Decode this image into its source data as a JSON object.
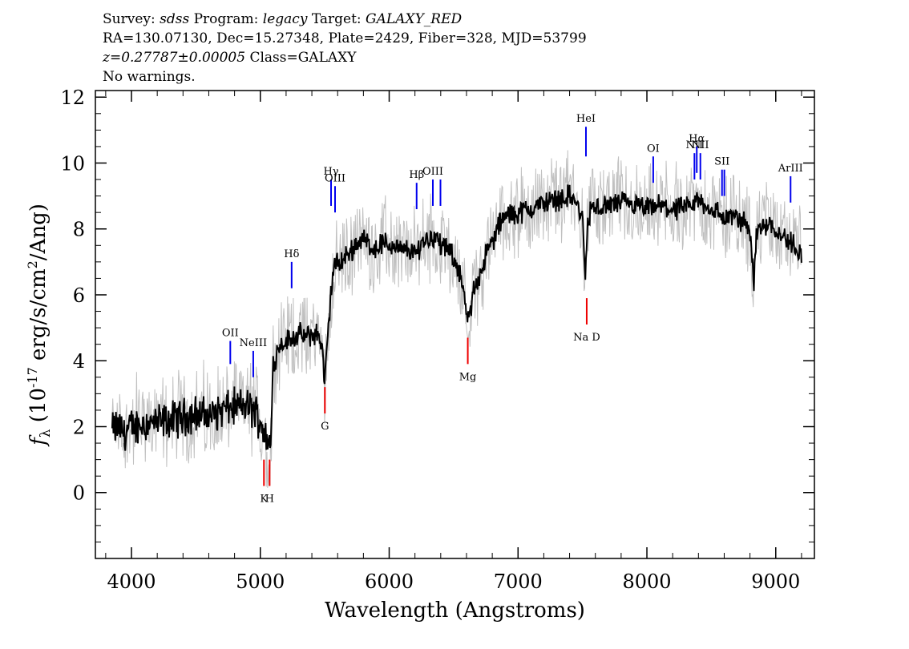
{
  "header": {
    "survey_label": "Survey:",
    "survey": "sdss",
    "program_label": "Program:",
    "program": "legacy",
    "target_label": "Target:",
    "target": "GALAXY_RED",
    "line2": "RA=130.07130, Dec=15.27348, Plate=2429, Fiber=328, MJD=53799",
    "redshift": "z=0.27787±0.00005",
    "class": "Class=GALAXY",
    "warnings": "No warnings."
  },
  "chart_data": {
    "type": "line",
    "xlabel": "Wavelength (Angstroms)",
    "ylabel": "f_λ (10^-17 erg/s/cm²/Ang)",
    "xlim": [
      3720,
      9300
    ],
    "ylim": [
      -2,
      12.2
    ],
    "xticks": [
      4000,
      5000,
      6000,
      7000,
      8000,
      9000
    ],
    "yticks": [
      0,
      2,
      4,
      6,
      8,
      10,
      12
    ],
    "colors": {
      "flux": "#000000",
      "noise": "#c0c0c0",
      "emission": "#0000ee",
      "absorption": "#ee0000"
    },
    "series": [
      {
        "x": [
          3850,
          3900,
          3950,
          4000,
          4100,
          4200,
          4300,
          4400,
          4500,
          4600,
          4700,
          4800,
          4900,
          4950,
          5000,
          5050,
          5080,
          5100,
          5150,
          5200,
          5250,
          5300,
          5350,
          5400,
          5450,
          5480,
          5500,
          5520,
          5550,
          5580,
          5600,
          5650,
          5700,
          5750,
          5800,
          5850,
          5900,
          5950,
          6000,
          6050,
          6100,
          6150,
          6200,
          6250,
          6300,
          6350,
          6400,
          6450,
          6500,
          6550,
          6600,
          6620,
          6650,
          6700,
          6750,
          6800,
          6850,
          6900,
          7000,
          7100,
          7200,
          7300,
          7400,
          7450,
          7500,
          7520,
          7540,
          7560,
          7600,
          7700,
          7800,
          7900,
          8000,
          8100,
          8200,
          8300,
          8350,
          8400,
          8450,
          8500,
          8550,
          8600,
          8650,
          8700,
          8750,
          8800,
          8830,
          8850,
          8900,
          8950,
          9000,
          9050,
          9100,
          9150,
          9200
        ],
        "y": [
          1.9,
          2.0,
          1.8,
          2.0,
          2.1,
          2.1,
          2.2,
          2.3,
          2.4,
          2.3,
          2.5,
          2.6,
          2.6,
          2.5,
          2.2,
          1.6,
          1.3,
          3.9,
          4.5,
          4.6,
          4.7,
          4.8,
          4.7,
          4.8,
          4.8,
          4.4,
          3.3,
          4.5,
          6.2,
          7.0,
          6.9,
          7.1,
          7.3,
          7.6,
          7.7,
          7.5,
          7.4,
          7.6,
          7.5,
          7.5,
          7.3,
          7.4,
          7.2,
          7.6,
          7.7,
          7.8,
          7.5,
          7.4,
          7.1,
          6.7,
          5.4,
          5.1,
          6.1,
          6.6,
          7.2,
          7.6,
          8.1,
          8.4,
          8.5,
          8.6,
          8.8,
          8.9,
          9.0,
          8.8,
          8.3,
          6.6,
          8.0,
          8.6,
          8.6,
          8.7,
          8.8,
          8.7,
          8.6,
          8.7,
          8.6,
          8.6,
          8.7,
          8.9,
          8.7,
          8.6,
          8.5,
          8.3,
          8.4,
          8.3,
          8.2,
          8.0,
          6.4,
          7.9,
          8.1,
          8.2,
          8.0,
          7.8,
          7.6,
          7.5,
          7.2
        ]
      }
    ],
    "emission_lines": [
      {
        "label": "OII",
        "x": 4767,
        "top": 4.6,
        "bottom": 3.9
      },
      {
        "label": "NeIII",
        "x": 4945,
        "top": 4.3,
        "bottom": 3.5
      },
      {
        "label": "Hδ",
        "x": 5243,
        "top": 7.0,
        "bottom": 6.2
      },
      {
        "label": "Hγ",
        "x": 5549,
        "top": 9.5,
        "bottom": 8.7
      },
      {
        "label": "OIII",
        "x": 5580,
        "top": 9.3,
        "bottom": 8.5
      },
      {
        "label": "Hβ",
        "x": 6213,
        "top": 9.4,
        "bottom": 8.6
      },
      {
        "label": "OIII",
        "x": 6339,
        "top": 9.5,
        "bottom": 8.7
      },
      {
        "label": "",
        "x": 6398,
        "top": 9.5,
        "bottom": 8.7
      },
      {
        "label": "HeI",
        "x": 7527,
        "top": 11.1,
        "bottom": 10.2
      },
      {
        "label": "OI",
        "x": 8049,
        "top": 10.2,
        "bottom": 9.4
      },
      {
        "label": "NII",
        "x": 8369,
        "top": 10.3,
        "bottom": 9.5
      },
      {
        "label": "Hα",
        "x": 8387,
        "top": 10.5,
        "bottom": 9.7
      },
      {
        "label": "NII",
        "x": 8415,
        "top": 10.3,
        "bottom": 9.5
      },
      {
        "label": "SII",
        "x": 8583,
        "top": 9.8,
        "bottom": 9.0
      },
      {
        "label": "",
        "x": 8601,
        "top": 9.8,
        "bottom": 9.0
      },
      {
        "label": "ArIII",
        "x": 9115,
        "top": 9.6,
        "bottom": 8.8
      }
    ],
    "absorption_lines": [
      {
        "label": "K",
        "x": 5028,
        "top": 1.0,
        "bottom": 0.2
      },
      {
        "label": "H",
        "x": 5072,
        "top": 1.0,
        "bottom": 0.2
      },
      {
        "label": "G",
        "x": 5501,
        "top": 3.2,
        "bottom": 2.4
      },
      {
        "label": "Mg",
        "x": 6610,
        "top": 4.7,
        "bottom": 3.9
      },
      {
        "label": "Na D",
        "x": 7533,
        "top": 5.9,
        "bottom": 5.1
      }
    ]
  }
}
